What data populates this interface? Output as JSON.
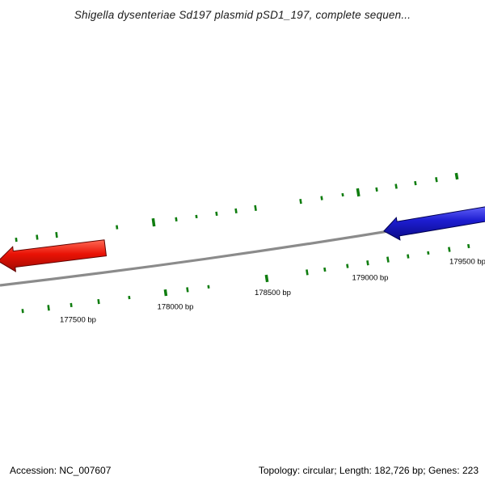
{
  "title": "Shigella dysenteriae Sd197 plasmid pSD1_197, complete sequen...",
  "status_bar": {
    "accession_label": "Accession: NC_007607",
    "summary_label": "Topology: circular; Length: 182,726 bp; Genes: 223"
  },
  "colors": {
    "background": "#ffffff",
    "backbone": "#8b8b8b",
    "mark_green": "#0f7d0f",
    "label_text": "#000000",
    "title_text": "#1a1a1a",
    "feature_red": {
      "light": "#ff6a55",
      "fill": "#e91205",
      "dark": "#9e0a02",
      "stroke": "#5f0300"
    },
    "feature_blue": {
      "light": "#6b6bff",
      "fill": "#1d1dd0",
      "dark": "#0a0a86",
      "stroke": "#000050"
    }
  },
  "chart_data": {
    "type": "other",
    "subtype": "circular plasmid genome map, zoomed-in arc view",
    "title": "Shigella dysenteriae Sd197 plasmid pSD1_197, complete sequen...",
    "accession": "NC_007607",
    "topology": "circular",
    "length_bp": 182726,
    "gene_count": 223,
    "visible_range_bp": [
      177100,
      179620
    ],
    "ruler": {
      "unit": "bp",
      "tick_interval_bp": 500,
      "ticks": [
        {
          "bp": 177500,
          "label": "177500 bp"
        },
        {
          "bp": 178000,
          "label": "178000 bp"
        },
        {
          "bp": 178500,
          "label": "178500 bp"
        },
        {
          "bp": 179000,
          "label": "179000 bp"
        },
        {
          "bp": 179500,
          "label": "179500 bp"
        }
      ]
    },
    "features": [
      {
        "id": "feature-red",
        "color_key": "feature_red",
        "shape": "arrow",
        "direction": "left",
        "strand": "reverse",
        "span_bp": [
          177090,
          177640
        ],
        "clipped_edge": "left"
      },
      {
        "id": "feature-blue",
        "color_key": "feature_blue",
        "shape": "arrow",
        "direction": "left",
        "strand": "reverse",
        "span_bp": [
          179070,
          179660
        ],
        "clipped_edge": "right"
      }
    ],
    "minor_marks": {
      "description": "small dark-green feature marks in bands above and below the backbone",
      "upper_bp_size": [
        [
          177183,
          5
        ],
        [
          177290,
          6
        ],
        [
          177390,
          7
        ],
        [
          177700,
          5
        ],
        [
          177888,
          10
        ],
        [
          178004,
          5
        ],
        [
          178108,
          4
        ],
        [
          178211,
          5
        ],
        [
          178311,
          6
        ],
        [
          178411,
          7
        ],
        [
          178643,
          6
        ],
        [
          178751,
          5
        ],
        [
          178859,
          4
        ],
        [
          178938,
          10
        ],
        [
          179033,
          5
        ],
        [
          179133,
          6
        ],
        [
          179232,
          5
        ],
        [
          179340,
          6
        ],
        [
          179444,
          8
        ]
      ],
      "lower_bp_size": [
        [
          177216,
          5
        ],
        [
          177349,
          7
        ],
        [
          177465,
          5
        ],
        [
          177606,
          6
        ],
        [
          177763,
          4
        ],
        [
          177950,
          8
        ],
        [
          178062,
          6
        ],
        [
          178170,
          4
        ],
        [
          178469,
          9
        ],
        [
          178676,
          7
        ],
        [
          178767,
          5
        ],
        [
          178883,
          5
        ],
        [
          178987,
          6
        ],
        [
          179091,
          7
        ],
        [
          179194,
          5
        ],
        [
          179298,
          4
        ],
        [
          179406,
          6
        ],
        [
          179505,
          5
        ]
      ]
    }
  }
}
